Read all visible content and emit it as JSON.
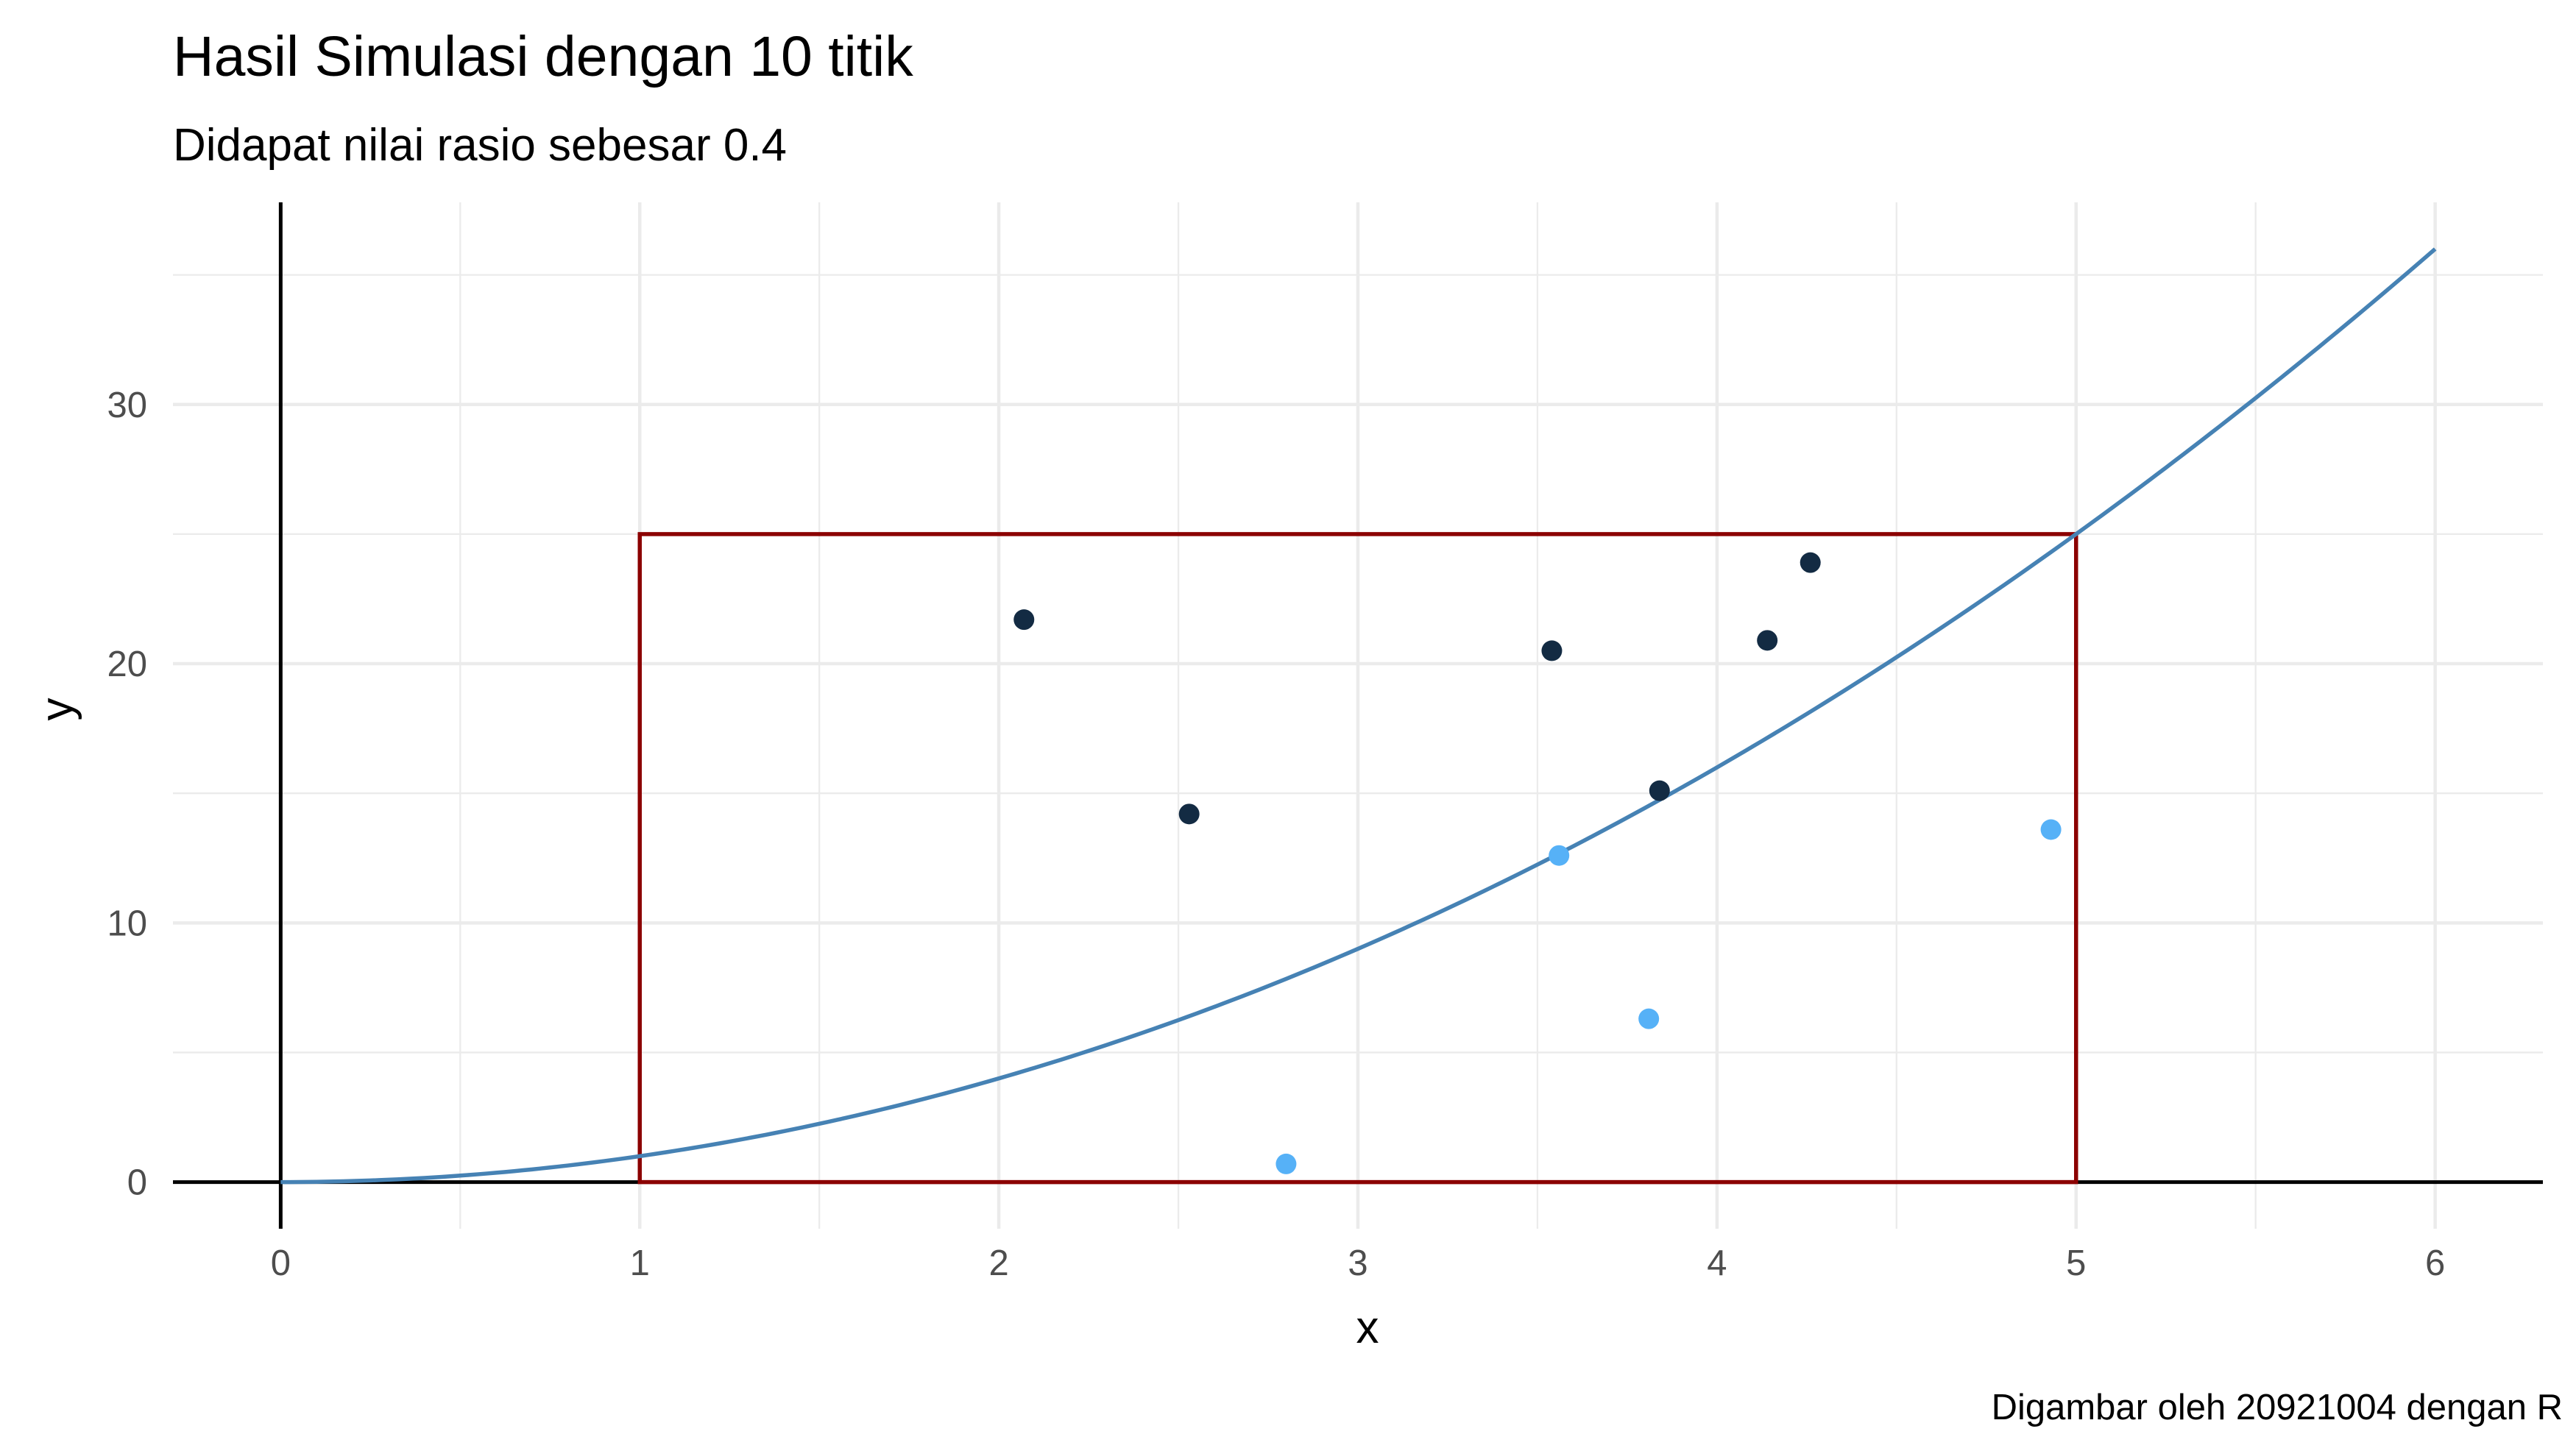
{
  "chart_data": {
    "type": "scatter",
    "title": "Hasil Simulasi dengan 10 titik",
    "subtitle": "Didapat nilai rasio sebesar 0.4",
    "xlabel": "x",
    "ylabel": "y",
    "caption": "Digambar oleh 20921004 dengan R",
    "xlim": [
      -0.3,
      6.3
    ],
    "ylim": [
      -1.8,
      37.8
    ],
    "x_ticks": [
      0,
      1,
      2,
      3,
      4,
      5,
      6
    ],
    "x_tick_labels": [
      "0",
      "1",
      "2",
      "3",
      "4",
      "5",
      "6"
    ],
    "y_ticks": [
      0,
      10,
      20,
      30
    ],
    "y_tick_labels": [
      "0",
      "10",
      "20",
      "30"
    ],
    "grid": true,
    "curve": {
      "function": "y = x^2",
      "x_range": [
        0,
        6
      ],
      "color": "#4682b4"
    },
    "rectangle": {
      "x": [
        1,
        5
      ],
      "y": [
        0,
        25
      ],
      "color": "#8b0000"
    },
    "series": [
      {
        "color": "#132b43",
        "points": [
          [
            2.07,
            21.7
          ],
          [
            2.53,
            14.2
          ],
          [
            3.54,
            20.5
          ],
          [
            3.84,
            15.1
          ],
          [
            4.14,
            20.9
          ],
          [
            4.26,
            23.9
          ]
        ]
      },
      {
        "color": "#56b1f7",
        "points": [
          [
            2.8,
            0.7
          ],
          [
            3.56,
            12.6
          ],
          [
            3.81,
            6.3
          ],
          [
            4.93,
            13.6
          ]
        ]
      }
    ],
    "legend": "none"
  }
}
